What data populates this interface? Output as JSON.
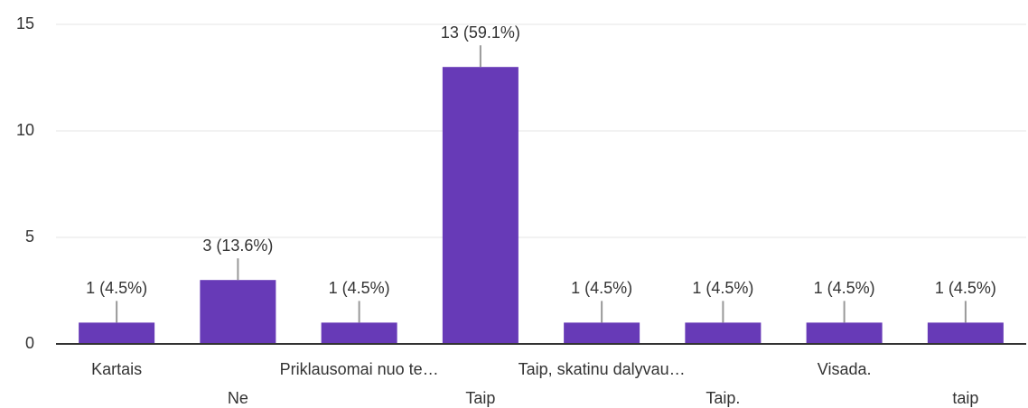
{
  "chart_data": {
    "type": "bar",
    "categories": [
      "Kartais",
      "Ne",
      "Priklausomai nuo te…",
      "Taip",
      "Taip, skatinu dalyvau…",
      "Taip.",
      "Visada.",
      "taip"
    ],
    "values": [
      1,
      3,
      1,
      13,
      1,
      1,
      1,
      1
    ],
    "value_labels": [
      "1 (4.5%)",
      "3 (13.6%)",
      "1 (4.5%)",
      "13 (59.1%)",
      "1 (4.5%)",
      "1 (4.5%)",
      "1 (4.5%)",
      "1 (4.5%)"
    ],
    "color": "#673ab7",
    "ylim": [
      0,
      15
    ],
    "yticks": [
      0,
      5,
      10,
      15
    ],
    "grid": true
  }
}
